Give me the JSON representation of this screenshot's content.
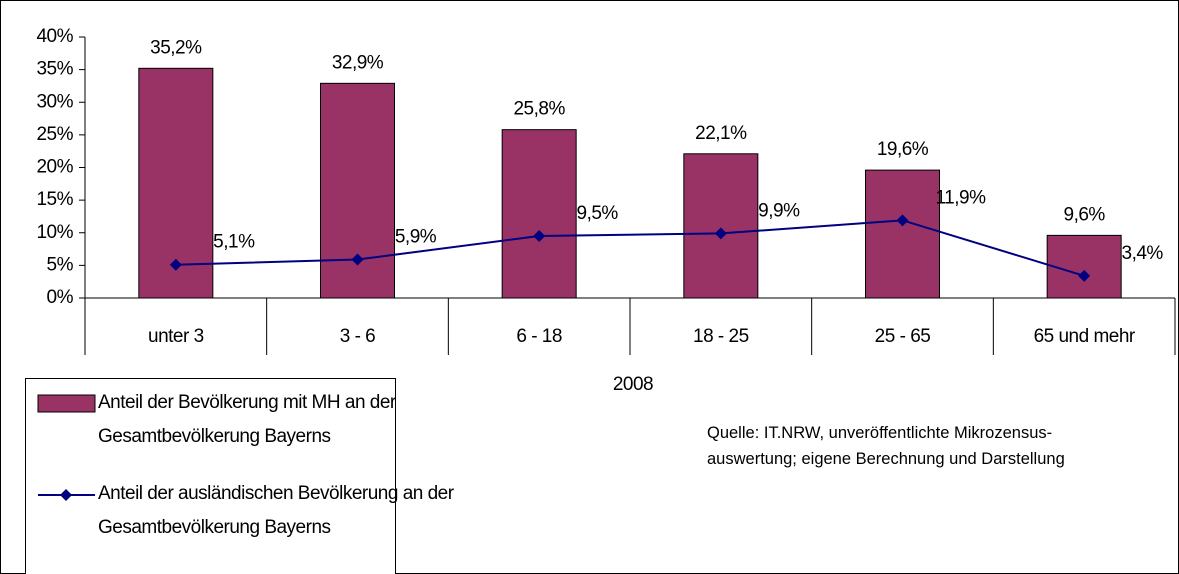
{
  "chart_data": {
    "type": "bar",
    "categories": [
      "unter  3",
      "3 - 6",
      "6 - 18",
      "18 - 25",
      "25 - 65",
      "65 und mehr"
    ],
    "xlabel": "2008",
    "series": [
      {
        "name": "Anteil der Bevölkerung mit MH an der\nGesamtbevölkerung Bayerns",
        "type": "bar",
        "color": "#993366",
        "values": [
          35.2,
          32.9,
          25.8,
          22.1,
          19.6,
          9.6
        ],
        "value_labels": [
          "35,2%",
          "32,9%",
          "25,8%",
          "22,1%",
          "19,6%",
          "9,6%"
        ]
      },
      {
        "name": "Anteil der ausländischen Bevölkerung an der\nGesamtbevölkerung Bayerns",
        "type": "line",
        "color": "#000080",
        "values": [
          5.1,
          5.9,
          9.5,
          9.9,
          11.9,
          3.4
        ],
        "value_labels": [
          "5,1%",
          "5,9%",
          "9,5%",
          "9,9%",
          "11,9%",
          "3,4%"
        ]
      }
    ],
    "ylim": [
      0,
      40
    ],
    "yticks": [
      {
        "value": 0,
        "label": "0%"
      },
      {
        "value": 5,
        "label": "5%"
      },
      {
        "value": 10,
        "label": "10%"
      },
      {
        "value": 15,
        "label": "15%"
      },
      {
        "value": 20,
        "label": "20%"
      },
      {
        "value": 25,
        "label": "25%"
      },
      {
        "value": 30,
        "label": "30%"
      },
      {
        "value": 35,
        "label": "35%"
      },
      {
        "value": 40,
        "label": "40%"
      }
    ],
    "grid": false,
    "legend": "bottom-left",
    "source": "Quelle: IT.NRW, unveröffentlichte Mikrozensus-\nauswertung; eigene Berechnung und Darstellung"
  }
}
